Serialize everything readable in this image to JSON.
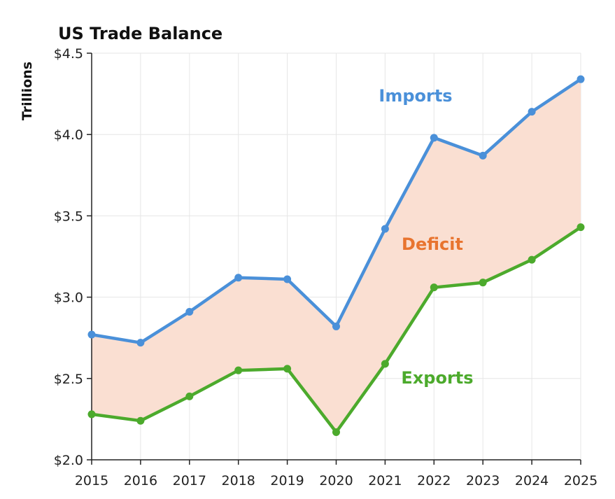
{
  "chart_data": {
    "type": "line",
    "title": "US Trade Balance",
    "xlabel": "",
    "ylabel": "Trillions",
    "x": [
      "2015",
      "2016",
      "2017",
      "2018",
      "2019",
      "2020",
      "2021",
      "2022",
      "2023",
      "2024",
      "2025"
    ],
    "y_ticks": [
      "$2.0",
      "$2.5",
      "$3.0",
      "$3.5",
      "$4.0",
      "$4.5"
    ],
    "ylim": [
      2.0,
      4.5
    ],
    "grid": true,
    "legend": "none",
    "series": [
      {
        "name": "Imports",
        "color": "#4a90d9",
        "values": [
          2.77,
          2.72,
          2.91,
          3.12,
          3.11,
          2.82,
          3.42,
          3.98,
          3.87,
          4.14,
          4.34
        ]
      },
      {
        "name": "Exports",
        "color": "#4caa2c",
        "values": [
          2.28,
          2.24,
          2.39,
          2.55,
          2.56,
          2.17,
          2.59,
          3.06,
          3.09,
          3.23,
          3.43
        ]
      }
    ],
    "fill_between": {
      "name": "Deficit",
      "color": "#fadfd2",
      "label_color": "#e8742f"
    }
  }
}
